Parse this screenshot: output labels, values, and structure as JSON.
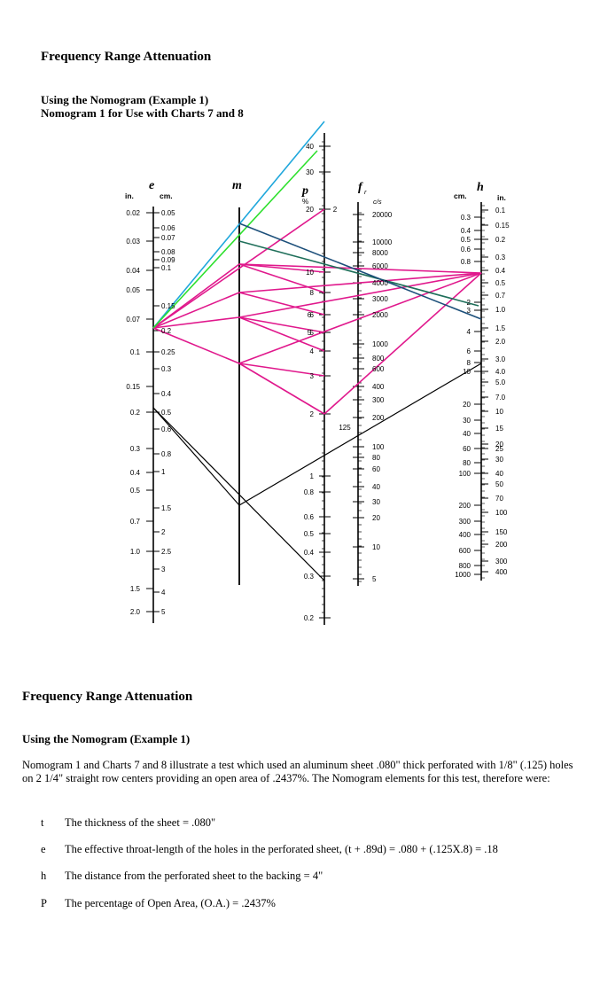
{
  "header": {
    "title": "Frequency Range Attenuation",
    "subtitle_line1": "Using the Nomogram (Example 1)",
    "subtitle_line2": "Nomogram 1 for Use with Charts 7 and 8"
  },
  "nomogram": {
    "e_var": "e",
    "m_var": "m",
    "p_var": "p",
    "fr_var": "f",
    "fr_sub": "r",
    "h_var": "h",
    "e_in": "in.",
    "e_cm": "cm.",
    "p_pct": "%",
    "fr_unit": "c/s",
    "h_cm": "cm.",
    "h_in": "in.",
    "e_in_ticks": [
      "0.02",
      "0.03",
      "0.04",
      "0.05",
      "0.07",
      "0.1",
      "0.15",
      "0.2",
      "0.3",
      "0.4",
      "0.5",
      "0.7",
      "1.0",
      "1.5",
      "2.0"
    ],
    "e_cm_ticks": [
      "0.05",
      "0.06",
      "0.07",
      "0.08",
      "0.09",
      "0.1",
      "0.15",
      "0.2",
      "0.25",
      "0.3",
      "0.4",
      "0.5",
      "0.6",
      "0.8",
      "1",
      "1.5",
      "2",
      "2.5",
      "3",
      "4",
      "5"
    ],
    "p_ticks": [
      "40",
      "30",
      "20",
      "10",
      "8",
      "6",
      "5",
      "4",
      "3",
      "2",
      "1",
      "0.8",
      "0.6",
      "0.5",
      "0.4",
      "0.3",
      "0.2"
    ],
    "p_left_marks": [
      "2",
      "6",
      "5"
    ],
    "fr_ticks": [
      "20000",
      "10000",
      "8000",
      "6000",
      "4000",
      "3000",
      "2000",
      "1000",
      "800",
      "600",
      "400",
      "300",
      "200",
      "100",
      "80",
      "60",
      "40",
      "30",
      "20",
      "10",
      "5"
    ],
    "fr_mark": "125",
    "h_cm_ticks": [
      "0.3",
      "0.4",
      "0.5",
      "0.6",
      "0.8",
      "2",
      "3",
      "4",
      "6",
      "8",
      "10",
      "20",
      "30",
      "40",
      "60",
      "80",
      "100",
      "200",
      "300",
      "400",
      "600",
      "800",
      "1000"
    ],
    "h_in_ticks": [
      "0.1",
      "0.15",
      "0.2",
      "0.3",
      "0.4",
      "0.5",
      "0.7",
      "1.0",
      "1.5",
      "2.0",
      "3.0",
      "4.0",
      "5.0",
      "7.0",
      "10",
      "15",
      "20",
      "25",
      "30",
      "40",
      "50",
      "70",
      "100",
      "150",
      "200",
      "300",
      "400"
    ],
    "colors": {
      "magenta": "#e0188c",
      "cyan": "#1fa7dc",
      "green": "#2ee02e",
      "teal": "#1f6f5a",
      "navy": "#1c4f7a",
      "black": "#000000"
    }
  },
  "body": {
    "title": "Frequency Range Attenuation",
    "subtitle": "Using the Nomogram (Example 1)",
    "paragraph": "Nomogram 1 and Charts 7 and 8 illustrate a test which used an aluminum sheet .080\" thick perforated with 1/8\" (.125) holes on 2 1/4\" straight row centers providing an open area of .2437%. The Nomogram elements for this test, therefore were:",
    "items": [
      {
        "key": "t",
        "text": "The thickness of the sheet = .080\""
      },
      {
        "key": "e",
        "text": "The effective throat-length of the holes in the perforated sheet, (t + .89d) = .080 + (.125X.8) = .18"
      },
      {
        "key": "h",
        "text": "The distance from the perforated sheet to the backing = 4\""
      },
      {
        "key": "P",
        "text": "The percentage of Open Area, (O.A.) = .2437%"
      }
    ]
  }
}
